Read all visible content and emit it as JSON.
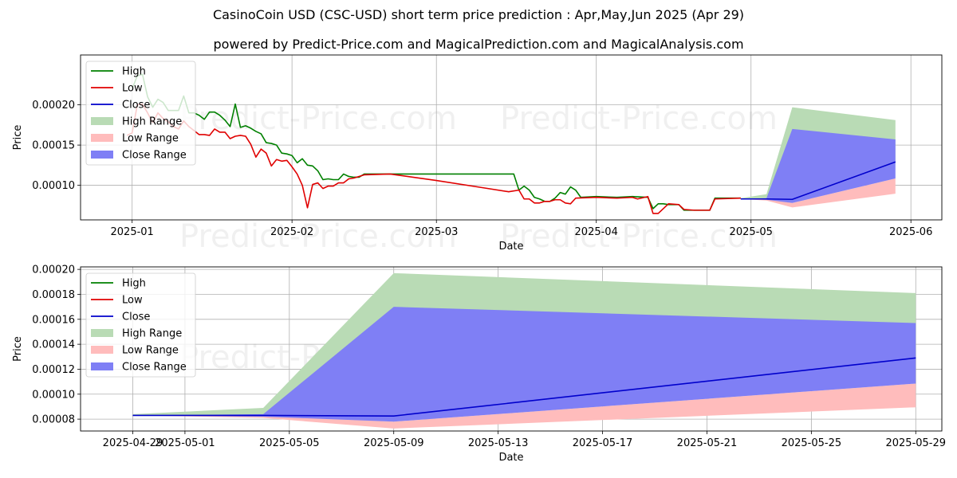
{
  "title": "CasinoCoin USD (CSC-USD) short term price prediction : Apr,May,Jun 2025 (Apr 29)",
  "subtitle": "powered by Predict-Price.com and MagicalPrediction.com and MagicalAnalysis.com",
  "watermark": "Predict-Price.com",
  "colors": {
    "high": "#008000",
    "low": "#e00000",
    "close": "#0000cc",
    "high_range": "#b9dbb5",
    "low_range": "#ffbcbc",
    "close_range": "#7f7ff5"
  },
  "chart_data": [
    {
      "type": "line",
      "xlabel": "Date",
      "ylabel": "Price",
      "xlim": [
        "2024-12-22",
        "2025-06-07"
      ],
      "ylim": [
        5.7e-05,
        0.000262
      ],
      "x_ticks": [
        "2025-01",
        "2025-02",
        "2025-03",
        "2025-04",
        "2025-05",
        "2025-06"
      ],
      "y_ticks": [
        "0.00010",
        "0.00015",
        "0.00020"
      ],
      "grid": true,
      "legend": "top-left",
      "legend_entries": [
        "High",
        "Low",
        "Close",
        "High Range",
        "Low Range",
        "Close Range"
      ],
      "series": [
        {
          "name": "High",
          "points": [
            [
              "2025-01-01",
              0.00022
            ],
            [
              "2025-01-02",
              0.000236
            ],
            [
              "2025-01-03",
              0.000238
            ],
            [
              "2025-01-04",
              0.00021
            ],
            [
              "2025-01-05",
              0.000197
            ],
            [
              "2025-01-06",
              0.000207
            ],
            [
              "2025-01-07",
              0.000203
            ],
            [
              "2025-01-08",
              0.000193
            ],
            [
              "2025-01-09",
              0.000193
            ],
            [
              "2025-01-10",
              0.000193
            ],
            [
              "2025-01-11",
              0.000211
            ],
            [
              "2025-01-12",
              0.00019
            ],
            [
              "2025-01-13",
              0.00019
            ],
            [
              "2025-01-14",
              0.000187
            ],
            [
              "2025-01-15",
              0.000182
            ],
            [
              "2025-01-16",
              0.000191
            ],
            [
              "2025-01-17",
              0.000191
            ],
            [
              "2025-01-18",
              0.000187
            ],
            [
              "2025-01-19",
              0.000181
            ],
            [
              "2025-01-20",
              0.000173
            ],
            [
              "2025-01-21",
              0.000201
            ],
            [
              "2025-01-22",
              0.000172
            ],
            [
              "2025-01-23",
              0.000174
            ],
            [
              "2025-01-24",
              0.000171
            ],
            [
              "2025-01-25",
              0.000167
            ],
            [
              "2025-01-26",
              0.000164
            ],
            [
              "2025-01-27",
              0.000153
            ],
            [
              "2025-01-28",
              0.000152
            ],
            [
              "2025-01-29",
              0.00015
            ],
            [
              "2025-01-30",
              0.00014
            ],
            [
              "2025-01-31",
              0.000139
            ],
            [
              "2025-02-01",
              0.000137
            ],
            [
              "2025-02-02",
              0.000128
            ],
            [
              "2025-02-03",
              0.000133
            ],
            [
              "2025-02-04",
              0.000125
            ],
            [
              "2025-02-05",
              0.000124
            ],
            [
              "2025-02-06",
              0.000118
            ],
            [
              "2025-02-07",
              0.000107
            ],
            [
              "2025-02-08",
              0.000108
            ],
            [
              "2025-02-09",
              0.000107
            ],
            [
              "2025-02-10",
              0.000107
            ],
            [
              "2025-02-11",
              0.000114
            ],
            [
              "2025-02-12",
              0.000111
            ],
            [
              "2025-02-13",
              0.00011
            ],
            [
              "2025-02-14",
              0.00011
            ],
            [
              "2025-02-15",
              0.000114
            ],
            [
              "2025-02-20",
              0.000114
            ],
            [
              "2025-03-01",
              0.000114
            ],
            [
              "2025-03-10",
              0.000114
            ],
            [
              "2025-03-16",
              0.000114
            ],
            [
              "2025-03-17",
              9.4e-05
            ],
            [
              "2025-03-18",
              9.9e-05
            ],
            [
              "2025-03-19",
              9.4e-05
            ],
            [
              "2025-03-20",
              8.5e-05
            ],
            [
              "2025-03-21",
              8.3e-05
            ],
            [
              "2025-03-22",
              8e-05
            ],
            [
              "2025-03-23",
              8e-05
            ],
            [
              "2025-03-24",
              8.4e-05
            ],
            [
              "2025-03-25",
              9.1e-05
            ],
            [
              "2025-03-26",
              8.9e-05
            ],
            [
              "2025-03-27",
              9.8e-05
            ],
            [
              "2025-03-28",
              9.4e-05
            ],
            [
              "2025-03-29",
              8.5e-05
            ],
            [
              "2025-04-01",
              8.6e-05
            ],
            [
              "2025-04-05",
              8.5e-05
            ],
            [
              "2025-04-08",
              8.6e-05
            ],
            [
              "2025-04-11",
              8.5e-05
            ],
            [
              "2025-04-12",
              7.1e-05
            ],
            [
              "2025-04-13",
              7.7e-05
            ],
            [
              "2025-04-14",
              7.7e-05
            ],
            [
              "2025-04-15",
              7.6e-05
            ],
            [
              "2025-04-17",
              7.6e-05
            ],
            [
              "2025-04-18",
              6.9e-05
            ],
            [
              "2025-04-21",
              6.9e-05
            ],
            [
              "2025-04-23",
              6.9e-05
            ],
            [
              "2025-04-24",
              8.4e-05
            ],
            [
              "2025-04-29",
              8.4e-05
            ]
          ]
        },
        {
          "name": "Low",
          "points": [
            [
              "2024-12-31",
              0.000162
            ],
            [
              "2025-01-01",
              0.000165
            ],
            [
              "2025-01-02",
              0.0002
            ],
            [
              "2025-01-03",
              0.000201
            ],
            [
              "2025-01-04",
              0.00019
            ],
            [
              "2025-01-05",
              0.000178
            ],
            [
              "2025-01-06",
              0.00019
            ],
            [
              "2025-01-07",
              0.000183
            ],
            [
              "2025-01-08",
              0.000179
            ],
            [
              "2025-01-09",
              0.000173
            ],
            [
              "2025-01-10",
              0.00017
            ],
            [
              "2025-01-11",
              0.00018
            ],
            [
              "2025-01-12",
              0.000173
            ],
            [
              "2025-01-13",
              0.000168
            ],
            [
              "2025-01-14",
              0.000163
            ],
            [
              "2025-01-15",
              0.000163
            ],
            [
              "2025-01-16",
              0.000162
            ],
            [
              "2025-01-17",
              0.00017
            ],
            [
              "2025-01-18",
              0.000166
            ],
            [
              "2025-01-19",
              0.000166
            ],
            [
              "2025-01-20",
              0.000158
            ],
            [
              "2025-01-21",
              0.000161
            ],
            [
              "2025-01-22",
              0.000162
            ],
            [
              "2025-01-23",
              0.000161
            ],
            [
              "2025-01-24",
              0.000151
            ],
            [
              "2025-01-25",
              0.000135
            ],
            [
              "2025-01-26",
              0.000145
            ],
            [
              "2025-01-27",
              0.00014
            ],
            [
              "2025-01-28",
              0.000124
            ],
            [
              "2025-01-29",
              0.000132
            ],
            [
              "2025-01-30",
              0.00013
            ],
            [
              "2025-01-31",
              0.000131
            ],
            [
              "2025-02-01",
              0.000123
            ],
            [
              "2025-02-02",
              0.000114
            ],
            [
              "2025-02-03",
              0.0001
            ],
            [
              "2025-02-04",
              7.2e-05
            ],
            [
              "2025-02-05",
              0.000101
            ],
            [
              "2025-02-06",
              0.000103
            ],
            [
              "2025-02-07",
              9.6e-05
            ],
            [
              "2025-02-08",
              9.9e-05
            ],
            [
              "2025-02-09",
              9.9e-05
            ],
            [
              "2025-02-10",
              0.000103
            ],
            [
              "2025-02-11",
              0.000103
            ],
            [
              "2025-02-12",
              0.000108
            ],
            [
              "2025-02-13",
              0.000109
            ],
            [
              "2025-02-14",
              0.000111
            ],
            [
              "2025-02-15",
              0.000113
            ],
            [
              "2025-02-20",
              0.000114
            ],
            [
              "2025-03-01",
              0.000106
            ],
            [
              "2025-03-10",
              9.7e-05
            ],
            [
              "2025-03-15",
              9.2e-05
            ],
            [
              "2025-03-17",
              9.4e-05
            ],
            [
              "2025-03-18",
              8.3e-05
            ],
            [
              "2025-03-19",
              8.3e-05
            ],
            [
              "2025-03-20",
              7.8e-05
            ],
            [
              "2025-03-21",
              7.8e-05
            ],
            [
              "2025-03-22",
              8e-05
            ],
            [
              "2025-03-23",
              8e-05
            ],
            [
              "2025-03-24",
              8.2e-05
            ],
            [
              "2025-03-25",
              8.2e-05
            ],
            [
              "2025-03-26",
              7.8e-05
            ],
            [
              "2025-03-27",
              7.7e-05
            ],
            [
              "2025-03-28",
              8.4e-05
            ],
            [
              "2025-04-01",
              8.5e-05
            ],
            [
              "2025-04-05",
              8.4e-05
            ],
            [
              "2025-04-08",
              8.5e-05
            ],
            [
              "2025-04-09",
              8.3e-05
            ],
            [
              "2025-04-11",
              8.6e-05
            ],
            [
              "2025-04-12",
              6.5e-05
            ],
            [
              "2025-04-13",
              6.5e-05
            ],
            [
              "2025-04-15",
              7.7e-05
            ],
            [
              "2025-04-17",
              7.6e-05
            ],
            [
              "2025-04-18",
              7e-05
            ],
            [
              "2025-04-20",
              6.9e-05
            ],
            [
              "2025-04-23",
              6.9e-05
            ],
            [
              "2025-04-24",
              8.3e-05
            ],
            [
              "2025-04-29",
              8.4e-05
            ]
          ]
        },
        {
          "name": "Close",
          "points": [
            [
              "2025-04-29",
              8.3e-05
            ],
            [
              "2025-05-04",
              8.3e-05
            ],
            [
              "2025-05-09",
              8.25e-05
            ],
            [
              "2025-05-29",
              0.000129
            ]
          ]
        }
      ],
      "ranges": [
        {
          "name": "High Range",
          "points": [
            [
              "2025-04-29",
              8.4e-05,
              8.3e-05
            ],
            [
              "2025-05-04",
              8.9e-05,
              8.3e-05
            ],
            [
              "2025-05-09",
              0.000197,
              8.3e-05
            ],
            [
              "2025-05-29",
              0.000181,
              0.000129
            ]
          ]
        },
        {
          "name": "Low Range",
          "points": [
            [
              "2025-04-29",
              8.3e-05,
              8.3e-05
            ],
            [
              "2025-05-04",
              8.3e-05,
              8.1e-05
            ],
            [
              "2025-05-09",
              7.8e-05,
              7.25e-05
            ],
            [
              "2025-05-29",
              0.0001085,
              8.95e-05
            ]
          ]
        },
        {
          "name": "Close Range",
          "points": [
            [
              "2025-04-29",
              8.3e-05,
              8.3e-05
            ],
            [
              "2025-05-04",
              8.4e-05,
              8.2e-05
            ],
            [
              "2025-05-09",
              0.00017,
              7.8e-05
            ],
            [
              "2025-05-29",
              0.000157,
              0.0001085
            ]
          ]
        }
      ]
    },
    {
      "type": "line",
      "xlabel": "Date",
      "ylabel": "Price",
      "xlim": [
        "2025-04-27",
        "2025-05-30"
      ],
      "ylim": [
        7.05e-05,
        0.000202
      ],
      "x_ticks": [
        "2025-04-29",
        "2025-05-01",
        "2025-05-05",
        "2025-05-09",
        "2025-05-13",
        "2025-05-17",
        "2025-05-21",
        "2025-05-25",
        "2025-05-29"
      ],
      "y_ticks": [
        "0.00008",
        "0.00010",
        "0.00012",
        "0.00014",
        "0.00016",
        "0.00018",
        "0.00020"
      ],
      "grid": true,
      "legend": "top-left",
      "legend_entries": [
        "High",
        "Low",
        "Close",
        "High Range",
        "Low Range",
        "Close Range"
      ],
      "series": [
        {
          "name": "Close",
          "points": [
            [
              "2025-04-29",
              8.3e-05
            ],
            [
              "2025-05-04",
              8.3e-05
            ],
            [
              "2025-05-09",
              8.25e-05
            ],
            [
              "2025-05-29",
              0.000129
            ]
          ]
        }
      ],
      "ranges": [
        {
          "name": "High Range",
          "points": [
            [
              "2025-04-29",
              8.4e-05,
              8.3e-05
            ],
            [
              "2025-05-04",
              8.9e-05,
              8.3e-05
            ],
            [
              "2025-05-09",
              0.000197,
              8.3e-05
            ],
            [
              "2025-05-29",
              0.000181,
              0.000129
            ]
          ]
        },
        {
          "name": "Low Range",
          "points": [
            [
              "2025-04-29",
              8.3e-05,
              8.3e-05
            ],
            [
              "2025-05-04",
              8.3e-05,
              8.1e-05
            ],
            [
              "2025-05-09",
              7.8e-05,
              7.25e-05
            ],
            [
              "2025-05-29",
              0.0001085,
              8.95e-05
            ]
          ]
        },
        {
          "name": "Close Range",
          "points": [
            [
              "2025-04-29",
              8.3e-05,
              8.3e-05
            ],
            [
              "2025-05-04",
              8.4e-05,
              8.2e-05
            ],
            [
              "2025-05-09",
              0.00017,
              7.8e-05
            ],
            [
              "2025-05-29",
              0.000157,
              0.0001085
            ]
          ]
        }
      ]
    }
  ]
}
